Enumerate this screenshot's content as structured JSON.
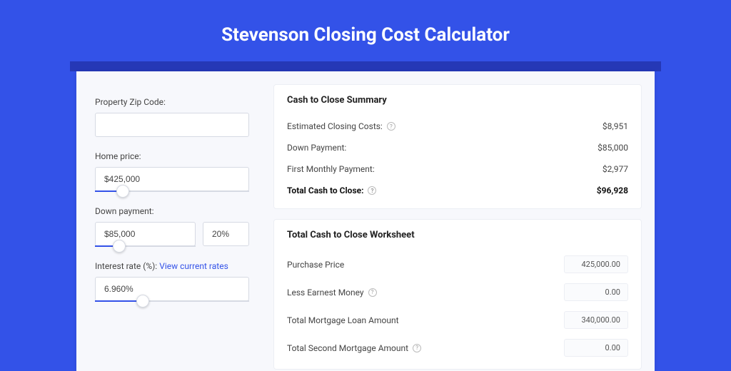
{
  "page": {
    "title": "Stevenson Closing Cost Calculator",
    "background_color": "#3352e8",
    "accent_bar_color": "#2538b6"
  },
  "inputs": {
    "zip_label": "Property Zip Code:",
    "zip_value": "",
    "home_price_label": "Home price:",
    "home_price_value": "$425,000",
    "home_price_slider_percent": 18,
    "down_payment_label": "Down payment:",
    "down_payment_value": "$85,000",
    "down_payment_percent_value": "20%",
    "down_payment_slider_percent": 24,
    "interest_label": "Interest rate (%):",
    "interest_link": "View current rates",
    "interest_value": "6.960%",
    "interest_slider_percent": 31
  },
  "summary": {
    "title": "Cash to Close Summary",
    "rows": [
      {
        "label": "Estimated Closing Costs:",
        "value": "$8,951",
        "help": true,
        "bold": false
      },
      {
        "label": "Down Payment:",
        "value": "$85,000",
        "help": false,
        "bold": false
      },
      {
        "label": "First Monthly Payment:",
        "value": "$2,977",
        "help": false,
        "bold": false
      },
      {
        "label": "Total Cash to Close:",
        "value": "$96,928",
        "help": true,
        "bold": true
      }
    ]
  },
  "worksheet": {
    "title": "Total Cash to Close Worksheet",
    "rows": [
      {
        "label": "Purchase Price",
        "value": "425,000.00",
        "help": false
      },
      {
        "label": "Less Earnest Money",
        "value": "0.00",
        "help": true
      },
      {
        "label": "Total Mortgage Loan Amount",
        "value": "340,000.00",
        "help": false
      },
      {
        "label": "Total Second Mortgage Amount",
        "value": "0.00",
        "help": true
      }
    ]
  }
}
